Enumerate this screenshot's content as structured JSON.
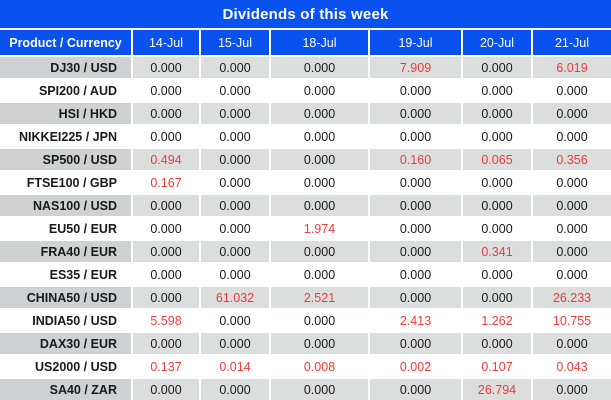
{
  "title": "Dividends of this week",
  "columns": [
    "Product / Currency",
    "14-Jul",
    "15-Jul",
    "18-Jul",
    "19-Jul",
    "20-Jul",
    "21-Jul"
  ],
  "rows": [
    {
      "product": "DJ30 / USD",
      "values": [
        "0.000",
        "0.000",
        "0.000",
        "7.909",
        "0.000",
        "6.019"
      ]
    },
    {
      "product": "SPI200 / AUD",
      "values": [
        "0.000",
        "0.000",
        "0.000",
        "0.000",
        "0.000",
        "0.000"
      ]
    },
    {
      "product": "HSI / HKD",
      "values": [
        "0.000",
        "0.000",
        "0.000",
        "0.000",
        "0.000",
        "0.000"
      ]
    },
    {
      "product": "NIKKEI225 / JPN",
      "values": [
        "0.000",
        "0.000",
        "0.000",
        "0.000",
        "0.000",
        "0.000"
      ]
    },
    {
      "product": "SP500 / USD",
      "values": [
        "0.494",
        "0.000",
        "0.000",
        "0.160",
        "0.065",
        "0.356"
      ]
    },
    {
      "product": "FTSE100 / GBP",
      "values": [
        "0.167",
        "0.000",
        "0.000",
        "0.000",
        "0.000",
        "0.000"
      ]
    },
    {
      "product": "NAS100 / USD",
      "values": [
        "0.000",
        "0.000",
        "0.000",
        "0.000",
        "0.000",
        "0.000"
      ]
    },
    {
      "product": "EU50 / EUR",
      "values": [
        "0.000",
        "0.000",
        "1.974",
        "0.000",
        "0.000",
        "0.000"
      ]
    },
    {
      "product": "FRA40 / EUR",
      "values": [
        "0.000",
        "0.000",
        "0.000",
        "0.000",
        "0.341",
        "0.000"
      ]
    },
    {
      "product": "ES35 / EUR",
      "values": [
        "0.000",
        "0.000",
        "0.000",
        "0.000",
        "0.000",
        "0.000"
      ]
    },
    {
      "product": "CHINA50 / USD",
      "values": [
        "0.000",
        "61.032",
        "2.521",
        "0.000",
        "0.000",
        "26.233"
      ]
    },
    {
      "product": "INDIA50 / USD",
      "values": [
        "5.598",
        "0.000",
        "0.000",
        "2.413",
        "1.262",
        "10.755"
      ]
    },
    {
      "product": "DAX30 / EUR",
      "values": [
        "0.000",
        "0.000",
        "0.000",
        "0.000",
        "0.000",
        "0.000"
      ]
    },
    {
      "product": "US2000 / USD",
      "values": [
        "0.137",
        "0.014",
        "0.008",
        "0.002",
        "0.107",
        "0.043"
      ]
    },
    {
      "product": "SA40 / ZAR",
      "values": [
        "0.000",
        "0.000",
        "0.000",
        "0.000",
        "26.794",
        "0.000"
      ]
    }
  ],
  "colors": {
    "header_blue": "#0a52f0",
    "row_gray": "#dcdddd",
    "product_col_gray": "#cfd1d2",
    "nonzero_red": "#ee3b3b",
    "zero_black": "#1a1a1a"
  }
}
